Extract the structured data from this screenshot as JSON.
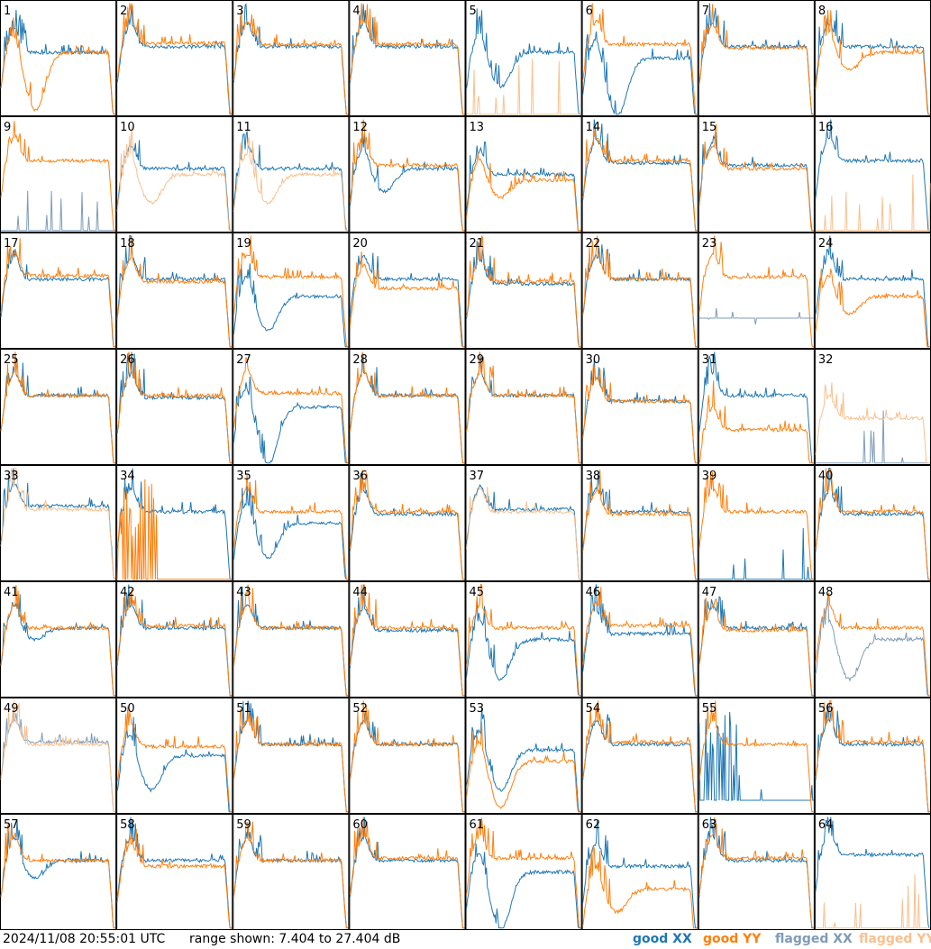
{
  "chart_data": {
    "type": "line",
    "grid": {
      "rows": 8,
      "cols": 8
    },
    "ylim": [
      7.404,
      27.404
    ],
    "panel_labels": [
      "1",
      "2",
      "3",
      "4",
      "5",
      "6",
      "7",
      "8",
      "9",
      "10",
      "11",
      "12",
      "13",
      "14",
      "15",
      "16",
      "17",
      "18",
      "19",
      "20",
      "21",
      "22",
      "23",
      "24",
      "25",
      "26",
      "27",
      "28",
      "29",
      "30",
      "31",
      "32",
      "33",
      "34",
      "35",
      "36",
      "37",
      "38",
      "39",
      "40",
      "41",
      "42",
      "43",
      "44",
      "45",
      "46",
      "47",
      "48",
      "49",
      "50",
      "51",
      "52",
      "53",
      "54",
      "55",
      "56",
      "57",
      "58",
      "59",
      "60",
      "61",
      "62",
      "63",
      "64"
    ],
    "series": [
      {
        "name": "good XX",
        "color": "#1f77b4"
      },
      {
        "name": "good YY",
        "color": "#ff7f0e"
      },
      {
        "name": "flagged XX",
        "color": "#7f9bb8"
      },
      {
        "name": "flagged YY",
        "color": "#f9c08f"
      }
    ],
    "panels": [
      {
        "id": 1,
        "xx": {
          "type": "normal",
          "base": 0.55,
          "peak": 1.0
        },
        "yy": {
          "type": "dip",
          "base": 0.55,
          "amp": 0.5,
          "spikes": true
        }
      },
      {
        "id": 2,
        "xx": {
          "type": "normal",
          "base": 0.6
        },
        "yy": {
          "type": "normal",
          "base": 0.63
        }
      },
      {
        "id": 3,
        "xx": {
          "type": "normal",
          "base": 0.6
        },
        "yy": {
          "type": "normal",
          "base": 0.62
        }
      },
      {
        "id": 4,
        "xx": {
          "type": "normal",
          "base": 0.6
        },
        "yy": {
          "type": "normal",
          "base": 0.62
        }
      },
      {
        "id": 5,
        "xx": {
          "type": "dip",
          "base": 0.55,
          "amp": 0.3,
          "spikes": true
        },
        "yy": {
          "type": "flagged-dead",
          "base": 0.0,
          "flagged": true
        }
      },
      {
        "id": 6,
        "xx": {
          "type": "dip",
          "base": 0.5,
          "amp": 0.5,
          "spikes": true
        },
        "yy": {
          "type": "normal",
          "base": 0.62
        }
      },
      {
        "id": 7,
        "xx": {
          "type": "normal",
          "base": 0.6
        },
        "yy": {
          "type": "normal",
          "base": 0.59
        }
      },
      {
        "id": 8,
        "xx": {
          "type": "normal",
          "base": 0.6
        },
        "yy": {
          "type": "dip",
          "base": 0.55,
          "amp": 0.15
        }
      },
      {
        "id": 9,
        "xx": {
          "type": "flagged-dead",
          "base": 0.0,
          "flagged": true
        },
        "yy": {
          "type": "normal",
          "base": 0.62
        }
      },
      {
        "id": 10,
        "xx": {
          "type": "normal",
          "base": 0.55
        },
        "yy": {
          "type": "dip",
          "base": 0.5,
          "amp": 0.25,
          "flagged": true
        }
      },
      {
        "id": 11,
        "xx": {
          "type": "normal",
          "base": 0.55
        },
        "yy": {
          "type": "dip",
          "base": 0.5,
          "amp": 0.25,
          "flagged": true
        }
      },
      {
        "id": 12,
        "xx": {
          "type": "dip",
          "base": 0.55,
          "amp": 0.2
        },
        "yy": {
          "type": "normal",
          "base": 0.58
        }
      },
      {
        "id": 13,
        "xx": {
          "type": "normal",
          "base": 0.5
        },
        "yy": {
          "type": "dip",
          "base": 0.45,
          "amp": 0.15
        }
      },
      {
        "id": 14,
        "xx": {
          "type": "normal",
          "base": 0.6
        },
        "yy": {
          "type": "normal",
          "base": 0.62
        }
      },
      {
        "id": 15,
        "xx": {
          "type": "normal",
          "base": 0.58
        },
        "yy": {
          "type": "normal",
          "base": 0.55
        }
      },
      {
        "id": 16,
        "xx": {
          "type": "normal",
          "base": 0.62
        },
        "yy": {
          "type": "flagged-dead",
          "base": 0.0,
          "flagged": true
        }
      },
      {
        "id": 17,
        "xx": {
          "type": "normal",
          "base": 0.6
        },
        "yy": {
          "type": "normal",
          "base": 0.63
        }
      },
      {
        "id": 18,
        "xx": {
          "type": "normal",
          "base": 0.6
        },
        "yy": {
          "type": "normal",
          "base": 0.58
        }
      },
      {
        "id": 19,
        "xx": {
          "type": "dip",
          "base": 0.45,
          "amp": 0.3
        },
        "yy": {
          "type": "normal",
          "base": 0.62
        }
      },
      {
        "id": 20,
        "xx": {
          "type": "normal",
          "base": 0.6
        },
        "yy": {
          "type": "normal",
          "base": 0.52
        }
      },
      {
        "id": 21,
        "xx": {
          "type": "normal",
          "base": 0.56
        },
        "yy": {
          "type": "normal",
          "base": 0.58
        }
      },
      {
        "id": 22,
        "xx": {
          "type": "normal",
          "base": 0.6
        },
        "yy": {
          "type": "normal",
          "base": 0.6
        }
      },
      {
        "id": 23,
        "xx": {
          "type": "flagged-dead",
          "base": 0.25,
          "flagged": true
        },
        "yy": {
          "type": "normal",
          "base": 0.62
        }
      },
      {
        "id": 24,
        "xx": {
          "type": "normal",
          "base": 0.6
        },
        "yy": {
          "type": "dip",
          "base": 0.45,
          "amp": 0.15
        }
      },
      {
        "id": 25,
        "xx": {
          "type": "normal",
          "base": 0.6
        },
        "yy": {
          "type": "normal",
          "base": 0.6
        }
      },
      {
        "id": 26,
        "xx": {
          "type": "normal",
          "base": 0.58
        },
        "yy": {
          "type": "normal",
          "base": 0.6
        }
      },
      {
        "id": 27,
        "xx": {
          "type": "dip",
          "base": 0.5,
          "amp": 0.5,
          "spikes": true
        },
        "yy": {
          "type": "normal",
          "base": 0.62
        }
      },
      {
        "id": 28,
        "xx": {
          "type": "normal",
          "base": 0.6
        },
        "yy": {
          "type": "normal",
          "base": 0.6
        }
      },
      {
        "id": 29,
        "xx": {
          "type": "normal",
          "base": 0.6
        },
        "yy": {
          "type": "normal",
          "base": 0.6
        }
      },
      {
        "id": 30,
        "xx": {
          "type": "normal",
          "base": 0.55
        },
        "yy": {
          "type": "normal",
          "base": 0.55
        }
      },
      {
        "id": 31,
        "xx": {
          "type": "normal",
          "base": 0.6
        },
        "yy": {
          "type": "normal",
          "base": 0.3
        }
      },
      {
        "id": 32,
        "xx": {
          "type": "flagged-dead",
          "base": 0.0,
          "flagged": true
        },
        "yy": {
          "type": "normal",
          "base": 0.4,
          "flagged": true
        }
      },
      {
        "id": 33,
        "xx": {
          "type": "normal",
          "base": 0.65
        },
        "yy": {
          "type": "normal",
          "base": 0.62,
          "flagged": true
        }
      },
      {
        "id": 34,
        "xx": {
          "type": "normal",
          "base": 0.6
        },
        "yy": {
          "type": "flagged-dead",
          "base": 0.0,
          "spikes": true
        }
      },
      {
        "id": 35,
        "xx": {
          "type": "dip",
          "base": 0.5,
          "amp": 0.3
        },
        "yy": {
          "type": "normal",
          "base": 0.6
        }
      },
      {
        "id": 36,
        "xx": {
          "type": "normal",
          "base": 0.58
        },
        "yy": {
          "type": "normal",
          "base": 0.6
        }
      },
      {
        "id": 37,
        "xx": {
          "type": "normal",
          "base": 0.62
        },
        "yy": {
          "type": "normal",
          "base": 0.6,
          "flagged": true
        }
      },
      {
        "id": 38,
        "xx": {
          "type": "normal",
          "base": 0.6
        },
        "yy": {
          "type": "normal",
          "base": 0.58
        }
      },
      {
        "id": 39,
        "xx": {
          "type": "flagged-dead",
          "base": 0.0
        },
        "yy": {
          "type": "normal",
          "base": 0.6
        }
      },
      {
        "id": 40,
        "xx": {
          "type": "normal",
          "base": 0.58
        },
        "yy": {
          "type": "normal",
          "base": 0.6
        }
      },
      {
        "id": 41,
        "xx": {
          "type": "dip",
          "base": 0.6,
          "amp": 0.1
        },
        "yy": {
          "type": "normal",
          "base": 0.6
        }
      },
      {
        "id": 42,
        "xx": {
          "type": "normal",
          "base": 0.6
        },
        "yy": {
          "type": "normal",
          "base": 0.62
        }
      },
      {
        "id": 43,
        "xx": {
          "type": "normal",
          "base": 0.6
        },
        "yy": {
          "type": "normal",
          "base": 0.6
        }
      },
      {
        "id": 44,
        "xx": {
          "type": "normal",
          "base": 0.58
        },
        "yy": {
          "type": "normal",
          "base": 0.6
        }
      },
      {
        "id": 45,
        "xx": {
          "type": "dip",
          "base": 0.5,
          "amp": 0.35
        },
        "yy": {
          "type": "normal",
          "base": 0.6
        }
      },
      {
        "id": 46,
        "xx": {
          "type": "normal",
          "base": 0.55
        },
        "yy": {
          "type": "normal",
          "base": 0.62
        }
      },
      {
        "id": 47,
        "xx": {
          "type": "normal",
          "base": 0.6
        },
        "yy": {
          "type": "normal",
          "base": 0.58
        }
      },
      {
        "id": 48,
        "xx": {
          "type": "dip",
          "base": 0.5,
          "amp": 0.35,
          "flagged": true
        },
        "yy": {
          "type": "normal",
          "base": 0.6
        }
      },
      {
        "id": 49,
        "xx": {
          "type": "normal",
          "base": 0.62,
          "flagged": true
        },
        "yy": {
          "type": "normal",
          "base": 0.6,
          "flagged": true
        }
      },
      {
        "id": 50,
        "xx": {
          "type": "dip",
          "base": 0.5,
          "amp": 0.3
        },
        "yy": {
          "type": "normal",
          "base": 0.58
        }
      },
      {
        "id": 51,
        "xx": {
          "type": "normal",
          "base": 0.6
        },
        "yy": {
          "type": "normal",
          "base": 0.6
        }
      },
      {
        "id": 52,
        "xx": {
          "type": "normal",
          "base": 0.6
        },
        "yy": {
          "type": "normal",
          "base": 0.6
        }
      },
      {
        "id": 53,
        "xx": {
          "type": "dip",
          "base": 0.55,
          "amp": 0.35
        },
        "yy": {
          "type": "dip",
          "base": 0.45,
          "amp": 0.4
        }
      },
      {
        "id": 54,
        "xx": {
          "type": "normal",
          "base": 0.6
        },
        "yy": {
          "type": "normal",
          "base": 0.62
        }
      },
      {
        "id": 55,
        "xx": {
          "type": "flagged-dead",
          "base": 0.1,
          "spikes": true
        },
        "yy": {
          "type": "normal",
          "base": 0.6
        }
      },
      {
        "id": 56,
        "xx": {
          "type": "normal",
          "base": 0.6
        },
        "yy": {
          "type": "normal",
          "base": 0.62
        }
      },
      {
        "id": 57,
        "xx": {
          "type": "dip",
          "base": 0.6,
          "amp": 0.15
        },
        "yy": {
          "type": "normal",
          "base": 0.6
        }
      },
      {
        "id": 58,
        "xx": {
          "type": "normal",
          "base": 0.6
        },
        "yy": {
          "type": "normal",
          "base": 0.55
        }
      },
      {
        "id": 59,
        "xx": {
          "type": "normal",
          "base": 0.6
        },
        "yy": {
          "type": "normal",
          "base": 0.6
        }
      },
      {
        "id": 60,
        "xx": {
          "type": "normal",
          "base": 0.6
        },
        "yy": {
          "type": "normal",
          "base": 0.62
        }
      },
      {
        "id": 61,
        "xx": {
          "type": "dip",
          "base": 0.5,
          "amp": 0.5,
          "spikes": true
        },
        "yy": {
          "type": "normal",
          "base": 0.62
        }
      },
      {
        "id": 62,
        "xx": {
          "type": "normal",
          "base": 0.55
        },
        "yy": {
          "type": "dip",
          "base": 0.35,
          "amp": 0.2
        }
      },
      {
        "id": 63,
        "xx": {
          "type": "normal",
          "base": 0.6
        },
        "yy": {
          "type": "normal",
          "base": 0.62
        }
      },
      {
        "id": 64,
        "xx": {
          "type": "normal",
          "base": 0.65
        },
        "yy": {
          "type": "flagged-dead",
          "base": 0.0,
          "flagged": true
        }
      }
    ]
  },
  "footer": {
    "timestamp": "2024/11/08 20:55:01 UTC",
    "range_text": "range shown: 7.404 to 27.404 dB",
    "legend": [
      {
        "label": "good XX",
        "color": "#1f77b4"
      },
      {
        "label": "good YY",
        "color": "#ff7f0e"
      },
      {
        "label": "flagged XX",
        "color": "#7f9bb8"
      },
      {
        "label": "flagged YY",
        "color": "#f9c08f"
      }
    ]
  }
}
